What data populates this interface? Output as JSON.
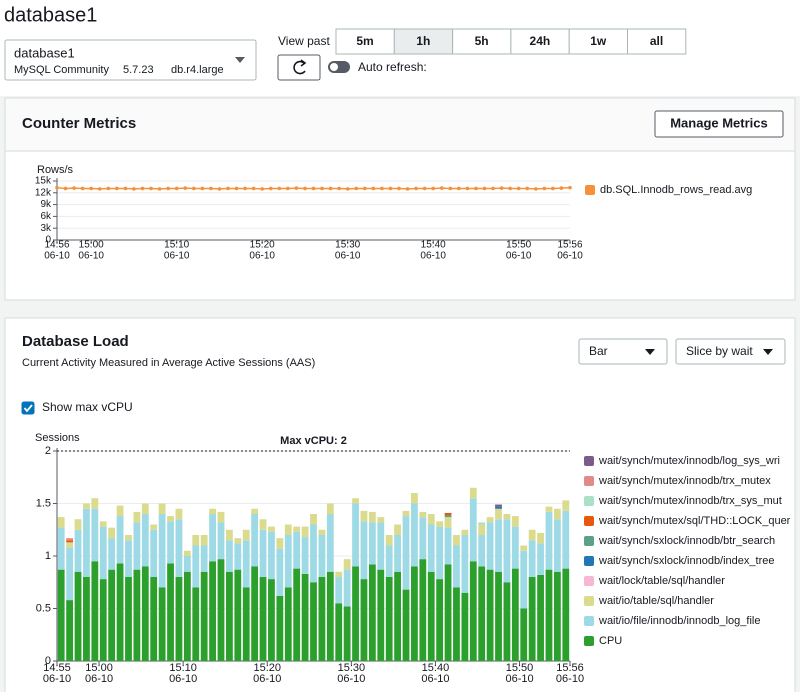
{
  "page_title": "database1",
  "instance": {
    "name": "database1",
    "engine": "MySQL Community",
    "version": "5.7.23",
    "class": "db.r4.large"
  },
  "view_past": {
    "label": "View past",
    "options": [
      "5m",
      "1h",
      "5h",
      "24h",
      "1w",
      "all"
    ],
    "selected": "1h"
  },
  "auto_refresh": {
    "label": "Auto refresh:",
    "on": false
  },
  "counter_metrics": {
    "title": "Counter Metrics",
    "button": "Manage Metrics"
  },
  "database_load": {
    "title": "Database Load",
    "subtitle": "Current Activity Measured in Average Active Sessions (AAS)",
    "display_options": [
      "Bar",
      "Slice by wait"
    ],
    "show_max_vcpu": {
      "label": "Show max vCPU",
      "checked": true
    }
  },
  "chart_data": [
    {
      "type": "line",
      "ylabel": "Rows/s",
      "x": [
        "06-10 14:56",
        "06-10 14:57",
        "06-10 14:58",
        "06-10 14:59",
        "06-10 15:00",
        "06-10 15:01",
        "06-10 15:02",
        "06-10 15:03",
        "06-10 15:04",
        "06-10 15:05",
        "06-10 15:06",
        "06-10 15:07",
        "06-10 15:08",
        "06-10 15:09",
        "06-10 15:10",
        "06-10 15:11",
        "06-10 15:12",
        "06-10 15:13",
        "06-10 15:14",
        "06-10 15:15",
        "06-10 15:16",
        "06-10 15:17",
        "06-10 15:18",
        "06-10 15:19",
        "06-10 15:20",
        "06-10 15:21",
        "06-10 15:22",
        "06-10 15:23",
        "06-10 15:24",
        "06-10 15:25",
        "06-10 15:26",
        "06-10 15:27",
        "06-10 15:28",
        "06-10 15:29",
        "06-10 15:30",
        "06-10 15:31",
        "06-10 15:32",
        "06-10 15:33",
        "06-10 15:34",
        "06-10 15:35",
        "06-10 15:36",
        "06-10 15:37",
        "06-10 15:38",
        "06-10 15:39",
        "06-10 15:40",
        "06-10 15:41",
        "06-10 15:42",
        "06-10 15:43",
        "06-10 15:44",
        "06-10 15:45",
        "06-10 15:46",
        "06-10 15:47",
        "06-10 15:48",
        "06-10 15:49",
        "06-10 15:50",
        "06-10 15:51",
        "06-10 15:52",
        "06-10 15:53",
        "06-10 15:54",
        "06-10 15:55",
        "06-10 15:56"
      ],
      "series": [
        {
          "name": "db.SQL.Innodb_rows_read.avg",
          "color": "#f5913b",
          "values": [
            13300,
            13100,
            13200,
            13100,
            13100,
            13000,
            13100,
            13100,
            13100,
            13000,
            13100,
            13100,
            13000,
            13100,
            13100,
            13200,
            13100,
            13100,
            13100,
            13000,
            13100,
            13100,
            13100,
            13100,
            13000,
            13100,
            13100,
            13100,
            13200,
            13100,
            13100,
            13100,
            13100,
            13100,
            13000,
            13100,
            13100,
            13100,
            13100,
            13100,
            13100,
            13000,
            13100,
            13100,
            13100,
            13200,
            13100,
            13100,
            13100,
            13100,
            13100,
            13100,
            13200,
            13100,
            13100,
            13100,
            13000,
            13100,
            13100,
            13200,
            13300
          ]
        }
      ],
      "xlim": [
        "06-10 14:56",
        "06-10 15:56"
      ],
      "xticks": [
        {
          "value": "06-10 14:56",
          "label": [
            "14:56",
            "06-10"
          ]
        },
        {
          "value": "06-10 15:00",
          "label": [
            "15:00",
            "06-10"
          ]
        },
        {
          "value": "06-10 15:10",
          "label": [
            "15:10",
            "06-10"
          ]
        },
        {
          "value": "06-10 15:20",
          "label": [
            "15:20",
            "06-10"
          ]
        },
        {
          "value": "06-10 15:30",
          "label": [
            "15:30",
            "06-10"
          ]
        },
        {
          "value": "06-10 15:40",
          "label": [
            "15:40",
            "06-10"
          ]
        },
        {
          "value": "06-10 15:50",
          "label": [
            "15:50",
            "06-10"
          ]
        },
        {
          "value": "06-10 15:56",
          "label": [
            "15:56",
            "06-10"
          ]
        }
      ],
      "ylim": [
        0,
        15000
      ],
      "yticks": [
        0,
        {
          "value": 3000,
          "label": "3k"
        },
        {
          "value": 6000,
          "label": "6k"
        },
        {
          "value": 9000,
          "label": "9k"
        },
        {
          "value": 12000,
          "label": "12k"
        },
        {
          "value": 15000,
          "label": "15k"
        }
      ],
      "grid": true,
      "legend": "right"
    },
    {
      "type": "bar",
      "stacked": true,
      "ylabel": "Sessions",
      "annotation": "Max vCPU: 2",
      "max_vcpu": 2,
      "x": [
        "06-10 14:55",
        "06-10 14:56",
        "06-10 14:57",
        "06-10 14:58",
        "06-10 14:59",
        "06-10 15:00",
        "06-10 15:01",
        "06-10 15:02",
        "06-10 15:03",
        "06-10 15:04",
        "06-10 15:05",
        "06-10 15:06",
        "06-10 15:07",
        "06-10 15:08",
        "06-10 15:09",
        "06-10 15:10",
        "06-10 15:11",
        "06-10 15:12",
        "06-10 15:13",
        "06-10 15:14",
        "06-10 15:15",
        "06-10 15:16",
        "06-10 15:17",
        "06-10 15:18",
        "06-10 15:19",
        "06-10 15:20",
        "06-10 15:21",
        "06-10 15:22",
        "06-10 15:23",
        "06-10 15:24",
        "06-10 15:25",
        "06-10 15:26",
        "06-10 15:27",
        "06-10 15:28",
        "06-10 15:29",
        "06-10 15:30",
        "06-10 15:31",
        "06-10 15:32",
        "06-10 15:33",
        "06-10 15:34",
        "06-10 15:35",
        "06-10 15:36",
        "06-10 15:37",
        "06-10 15:38",
        "06-10 15:39",
        "06-10 15:40",
        "06-10 15:41",
        "06-10 15:42",
        "06-10 15:43",
        "06-10 15:44",
        "06-10 15:45",
        "06-10 15:46",
        "06-10 15:47",
        "06-10 15:48",
        "06-10 15:49",
        "06-10 15:50",
        "06-10 15:51",
        "06-10 15:52",
        "06-10 15:53",
        "06-10 15:54",
        "06-10 15:55"
      ],
      "series": [
        {
          "name": "CPU",
          "color": "#2ca02c",
          "values": [
            0.87,
            0.58,
            0.85,
            0.8,
            0.95,
            0.78,
            0.87,
            0.93,
            0.8,
            0.87,
            0.9,
            0.8,
            0.7,
            0.93,
            0.8,
            0.85,
            0.7,
            0.85,
            0.95,
            0.97,
            0.85,
            0.87,
            0.7,
            0.9,
            0.8,
            0.78,
            0.62,
            0.7,
            0.88,
            0.83,
            0.75,
            0.8,
            0.85,
            0.55,
            0.52,
            0.9,
            0.78,
            0.92,
            0.87,
            0.8,
            0.85,
            0.68,
            0.9,
            0.97,
            0.85,
            0.78,
            0.92,
            0.7,
            0.65,
            0.95,
            0.9,
            0.87,
            0.85,
            0.75,
            0.88,
            0.5,
            0.8,
            0.82,
            0.87,
            0.85,
            0.88
          ]
        },
        {
          "name": "wait/io/file/innodb/innodb_log_file",
          "color": "#9edae5",
          "values": [
            0.4,
            0.5,
            0.4,
            0.65,
            0.5,
            0.5,
            0.3,
            0.45,
            0.35,
            0.45,
            0.5,
            0.45,
            0.7,
            0.4,
            0.55,
            0.15,
            0.4,
            0.25,
            0.45,
            0.35,
            0.3,
            0.25,
            0.45,
            0.5,
            0.45,
            0.45,
            0.45,
            0.5,
            0.35,
            0.35,
            0.55,
            0.4,
            0.55,
            0.25,
            0.35,
            0.6,
            0.55,
            0.4,
            0.45,
            0.3,
            0.35,
            0.7,
            0.6,
            0.4,
            0.45,
            0.5,
            0.35,
            0.4,
            0.55,
            0.6,
            0.3,
            0.45,
            0.5,
            0.6,
            0.4,
            0.55,
            0.35,
            0.3,
            0.55,
            0.5,
            0.55
          ]
        },
        {
          "name": "wait/io/table/sql/handler",
          "color": "#dbdb8d",
          "values": [
            0.1,
            0.05,
            0.1,
            0.05,
            0.1,
            0.05,
            0.1,
            0.1,
            0.05,
            0.1,
            0.1,
            0.05,
            0.1,
            0.05,
            0.1,
            0.05,
            0.1,
            0.1,
            0.05,
            0.1,
            0.1,
            0.05,
            0.1,
            0.05,
            0.1,
            0.05,
            0.1,
            0.1,
            0.05,
            0.1,
            0.1,
            0.05,
            0.1,
            0.05,
            0.1,
            0.05,
            0.1,
            0.1,
            0.05,
            0.1,
            0.1,
            0.05,
            0.1,
            0.05,
            0.1,
            0.05,
            0.1,
            0.1,
            0.05,
            0.1,
            0.1,
            0.05,
            0.1,
            0.05,
            0.1,
            0.05,
            0.1,
            0.1,
            0.05,
            0.1,
            0.1
          ]
        },
        {
          "name": "wait/lock/table/sql/handler",
          "color": "#f7b6d2",
          "values": [
            0,
            0,
            0,
            0,
            0,
            0,
            0,
            0,
            0,
            0,
            0,
            0,
            0,
            0,
            0,
            0,
            0,
            0,
            0,
            0,
            0,
            0,
            0,
            0,
            0,
            0,
            0,
            0,
            0,
            0,
            0,
            0,
            0,
            0,
            0,
            0,
            0,
            0,
            0,
            0,
            0,
            0,
            0,
            0,
            0,
            0,
            0,
            0,
            0,
            0,
            0,
            0,
            0,
            0,
            0,
            0,
            0,
            0,
            0,
            0,
            0
          ]
        },
        {
          "name": "wait/synch/sxlock/innodb/index_tree",
          "color": "#1f77b4",
          "values": [
            0,
            0,
            0,
            0,
            0,
            0,
            0,
            0,
            0,
            0,
            0,
            0,
            0,
            0,
            0,
            0,
            0,
            0,
            0,
            0,
            0,
            0,
            0,
            0,
            0,
            0,
            0,
            0,
            0,
            0,
            0,
            0,
            0,
            0,
            0,
            0,
            0,
            0,
            0,
            0,
            0,
            0,
            0,
            0,
            0,
            0,
            0,
            0,
            0,
            0,
            0,
            0,
            0.02,
            0,
            0,
            0,
            0,
            0,
            0,
            0,
            0
          ]
        },
        {
          "name": "wait/synch/sxlock/innodb/btr_search",
          "color": "#5aa08a",
          "values": [
            0,
            0,
            0,
            0,
            0,
            0,
            0,
            0,
            0,
            0,
            0,
            0,
            0,
            0,
            0,
            0,
            0,
            0,
            0,
            0,
            0,
            0,
            0,
            0,
            0,
            0,
            0,
            0,
            0,
            0,
            0,
            0,
            0,
            0,
            0,
            0,
            0,
            0,
            0,
            0,
            0,
            0,
            0,
            0,
            0,
            0,
            0.02,
            0,
            0,
            0,
            0,
            0,
            0,
            0,
            0,
            0,
            0,
            0,
            0,
            0,
            0
          ]
        },
        {
          "name": "wait/synch/mutex/sql/THD::LOCK_quer",
          "color": "#e8580c",
          "values": [
            0,
            0.02,
            0,
            0,
            0,
            0,
            0,
            0,
            0,
            0,
            0,
            0,
            0,
            0,
            0,
            0,
            0,
            0,
            0,
            0,
            0,
            0,
            0,
            0,
            0,
            0,
            0,
            0,
            0,
            0,
            0,
            0,
            0,
            0,
            0,
            0,
            0,
            0,
            0,
            0,
            0,
            0,
            0,
            0,
            0,
            0,
            0.02,
            0,
            0,
            0,
            0,
            0,
            0,
            0,
            0,
            0,
            0,
            0,
            0,
            0,
            0
          ]
        },
        {
          "name": "wait/synch/mutex/innodb/trx_sys_mut",
          "color": "#a8e0c8",
          "values": [
            0,
            0,
            0,
            0,
            0,
            0,
            0,
            0,
            0,
            0,
            0,
            0,
            0,
            0,
            0,
            0,
            0,
            0,
            0,
            0,
            0,
            0,
            0,
            0,
            0,
            0,
            0,
            0,
            0,
            0,
            0,
            0,
            0,
            0,
            0,
            0,
            0,
            0,
            0,
            0,
            0,
            0,
            0,
            0,
            0,
            0,
            0,
            0,
            0,
            0,
            0.02,
            0,
            0,
            0,
            0,
            0,
            0,
            0,
            0,
            0,
            0
          ]
        },
        {
          "name": "wait/synch/mutex/innodb/trx_mutex",
          "color": "#e08a8a",
          "values": [
            0,
            0.02,
            0,
            0,
            0,
            0,
            0,
            0,
            0,
            0,
            0,
            0,
            0,
            0,
            0,
            0,
            0,
            0,
            0,
            0,
            0,
            0,
            0,
            0,
            0,
            0,
            0,
            0,
            0,
            0,
            0,
            0,
            0,
            0,
            0,
            0,
            0,
            0,
            0,
            0,
            0,
            0,
            0,
            0,
            0,
            0,
            0,
            0,
            0,
            0,
            0,
            0,
            0,
            0,
            0,
            0,
            0,
            0,
            0,
            0,
            0
          ]
        },
        {
          "name": "wait/synch/mutex/innodb/log_sys_wri",
          "color": "#7b5b8c",
          "values": [
            0,
            0,
            0,
            0,
            0,
            0,
            0,
            0,
            0,
            0,
            0,
            0,
            0,
            0,
            0,
            0,
            0,
            0,
            0,
            0,
            0,
            0,
            0,
            0,
            0,
            0,
            0,
            0,
            0,
            0,
            0,
            0,
            0,
            0,
            0,
            0,
            0,
            0,
            0,
            0,
            0,
            0,
            0,
            0,
            0,
            0,
            0,
            0,
            0,
            0,
            0,
            0,
            0.02,
            0,
            0,
            0,
            0,
            0,
            0,
            0,
            0
          ]
        }
      ],
      "xlim": [
        "06-10 14:55",
        "06-10 15:56"
      ],
      "xticks": [
        {
          "value": "06-10 14:55",
          "label": [
            "14:55",
            "06-10"
          ]
        },
        {
          "value": "06-10 15:00",
          "label": [
            "15:00",
            "06-10"
          ]
        },
        {
          "value": "06-10 15:10",
          "label": [
            "15:10",
            "06-10"
          ]
        },
        {
          "value": "06-10 15:20",
          "label": [
            "15:20",
            "06-10"
          ]
        },
        {
          "value": "06-10 15:30",
          "label": [
            "15:30",
            "06-10"
          ]
        },
        {
          "value": "06-10 15:40",
          "label": [
            "15:40",
            "06-10"
          ]
        },
        {
          "value": "06-10 15:50",
          "label": [
            "15:50",
            "06-10"
          ]
        },
        {
          "value": "06-10 15:56",
          "label": [
            "15:56",
            "06-10"
          ]
        }
      ],
      "ylim": [
        0,
        2
      ],
      "yticks": [
        0,
        0.5,
        1,
        1.5,
        2
      ],
      "grid": true,
      "legend": "right"
    }
  ]
}
